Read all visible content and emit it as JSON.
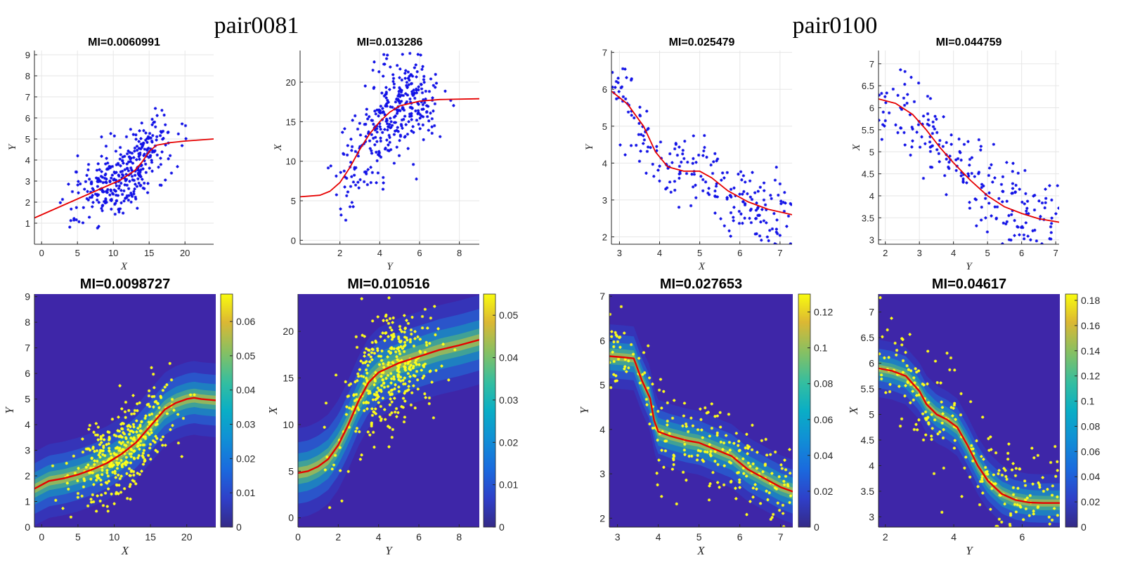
{
  "pairs": [
    {
      "label": "pair0081"
    },
    {
      "label": "pair0100"
    }
  ],
  "colors": {
    "scatter_top": "#1010e6",
    "scatter_bottom": "#ffff1a",
    "curve": "#e60000",
    "grid": "#e6e6e6",
    "axis": "#262626",
    "heat_bg": "#3e26a8"
  },
  "chart_data": [
    {
      "id": "p81-top-left",
      "type": "scatter",
      "title": "MI=0.0060991",
      "xlabel": "X",
      "ylabel": "Y",
      "xlim": [
        -1,
        24
      ],
      "ylim": [
        0,
        9.2
      ],
      "xticks": [
        0,
        5,
        10,
        15,
        20
      ],
      "yticks": [
        1,
        2,
        3,
        4,
        5,
        6,
        7,
        8,
        9
      ],
      "curve": {
        "x": [
          -1,
          2,
          5,
          8,
          11,
          13,
          14,
          15,
          16,
          18,
          20,
          22,
          24
        ],
        "y": [
          1.25,
          1.7,
          2.15,
          2.6,
          3.05,
          3.5,
          3.9,
          4.4,
          4.7,
          4.83,
          4.9,
          4.95,
          5.0
        ]
      },
      "points": {
        "seed": 811,
        "n": 360,
        "shape": "sig",
        "params": [
          -1,
          24,
          1.25,
          5.0,
          13.5,
          3.4,
          0.85
        ]
      }
    },
    {
      "id": "p81-top-right",
      "type": "scatter",
      "title": "MI=0.013286",
      "xlabel": "Y",
      "ylabel": "X",
      "xlim": [
        0,
        9
      ],
      "ylim": [
        -0.5,
        24
      ],
      "xticks": [
        2,
        4,
        6,
        8
      ],
      "yticks": [
        0,
        5,
        10,
        15,
        20
      ],
      "curve": {
        "x": [
          0,
          1,
          1.5,
          2,
          2.5,
          3,
          3.5,
          4,
          4.5,
          5,
          6,
          7,
          9
        ],
        "y": [
          5.5,
          5.7,
          6.2,
          7.3,
          9.2,
          11.5,
          13.5,
          15.0,
          16.2,
          17.0,
          17.6,
          17.8,
          17.9
        ]
      },
      "points": {
        "seed": 812,
        "n": 360,
        "shape": "sig",
        "params": [
          0,
          9,
          5.5,
          17.9,
          3.0,
          0.75,
          3.2
        ]
      }
    },
    {
      "id": "p100-top-left",
      "type": "scatter",
      "title": "MI=0.025479",
      "xlabel": "X",
      "ylabel": "Y",
      "xlim": [
        2.8,
        7.3
      ],
      "ylim": [
        1.8,
        7.05
      ],
      "xticks": [
        3,
        4,
        5,
        6,
        7
      ],
      "yticks": [
        2,
        3,
        4,
        5,
        6,
        7
      ],
      "curve": {
        "x": [
          2.8,
          3.2,
          3.6,
          3.9,
          4.2,
          4.6,
          5.0,
          5.3,
          5.7,
          6.2,
          6.7,
          7.3
        ],
        "y": [
          5.95,
          5.6,
          5.0,
          4.3,
          3.9,
          3.78,
          3.78,
          3.6,
          3.25,
          2.95,
          2.75,
          2.6
        ]
      },
      "points": {
        "seed": 1001,
        "n": 230,
        "shape": "lin",
        "params": [
          2.8,
          7.3,
          5.95,
          2.6,
          0.5
        ]
      }
    },
    {
      "id": "p100-top-right",
      "type": "scatter",
      "title": "MI=0.044759",
      "xlabel": "Y",
      "ylabel": "X",
      "xlim": [
        1.8,
        7.1
      ],
      "ylim": [
        2.9,
        7.3
      ],
      "xticks": [
        2,
        3,
        4,
        5,
        6,
        7
      ],
      "yticks": [
        3,
        3.5,
        4,
        4.5,
        5,
        5.5,
        6,
        6.5,
        7
      ],
      "curve": {
        "x": [
          1.8,
          2.3,
          2.8,
          3.2,
          3.6,
          4.0,
          4.5,
          5.0,
          5.5,
          6.0,
          6.5,
          7.1
        ],
        "y": [
          6.2,
          6.1,
          5.85,
          5.5,
          5.1,
          4.75,
          4.35,
          4.0,
          3.75,
          3.6,
          3.48,
          3.4
        ]
      },
      "points": {
        "seed": 1002,
        "n": 230,
        "shape": "lin",
        "params": [
          1.8,
          7.1,
          6.2,
          3.4,
          0.5
        ]
      }
    },
    {
      "id": "p81-bottom-left",
      "type": "heatmap",
      "title": "MI=0.0098727",
      "xlabel": "X",
      "ylabel": "Y",
      "xlim": [
        -1,
        24
      ],
      "ylim": [
        0,
        9.1
      ],
      "xticks": [
        0,
        5,
        10,
        15,
        20
      ],
      "yticks": [
        0,
        1,
        2,
        3,
        4,
        5,
        6,
        7,
        8,
        9
      ],
      "colorbar": {
        "ticks": [
          0,
          0.01,
          0.02,
          0.03,
          0.04,
          0.05,
          0.06
        ],
        "labels": [
          "0",
          "0.01",
          "0.02",
          "0.03",
          "0.04",
          "0.05",
          "0.06"
        ],
        "max": 0.068
      },
      "curve": {
        "x": [
          -1,
          1,
          3,
          5,
          7,
          9,
          11,
          13,
          15,
          17,
          18.5,
          20,
          21,
          22,
          24
        ],
        "y": [
          1.5,
          1.8,
          1.9,
          2.05,
          2.25,
          2.5,
          2.85,
          3.3,
          3.95,
          4.6,
          4.85,
          5.0,
          5.05,
          5.0,
          4.95
        ]
      },
      "band": {
        "width": 0.9
      },
      "points": {
        "seed": 813,
        "n": 360,
        "shape": "sig",
        "params": [
          -1,
          24,
          1.25,
          5.0,
          13.5,
          3.4,
          0.85
        ]
      }
    },
    {
      "id": "p81-bottom-right",
      "type": "heatmap",
      "title": "MI=0.010516",
      "xlabel": "Y",
      "ylabel": "X",
      "xlim": [
        0,
        9
      ],
      "ylim": [
        -1,
        24
      ],
      "xticks": [
        0,
        2,
        4,
        6,
        8
      ],
      "yticks": [
        0,
        5,
        10,
        15,
        20
      ],
      "colorbar": {
        "ticks": [
          0,
          0.01,
          0.02,
          0.03,
          0.04,
          0.05
        ],
        "labels": [
          "0",
          "0.01",
          "0.02",
          "0.03",
          "0.04",
          "0.05"
        ],
        "max": 0.055
      },
      "curve": {
        "x": [
          0,
          0.5,
          1,
          1.5,
          2,
          2.5,
          3,
          3.5,
          4,
          4.5,
          5,
          6,
          7,
          8,
          9
        ],
        "y": [
          4.8,
          5.0,
          5.5,
          6.3,
          7.8,
          10.0,
          12.5,
          14.5,
          15.6,
          16.1,
          16.6,
          17.3,
          18.0,
          18.5,
          19.1
        ]
      },
      "band": {
        "width": 3.0
      },
      "points": {
        "seed": 814,
        "n": 360,
        "shape": "sig",
        "params": [
          0,
          9,
          5.5,
          17.9,
          3.0,
          0.75,
          3.2
        ]
      }
    },
    {
      "id": "p100-bottom-left",
      "type": "heatmap",
      "title": "MI=0.027653",
      "xlabel": "X",
      "ylabel": "Y",
      "xlim": [
        2.8,
        7.3
      ],
      "ylim": [
        1.8,
        7.05
      ],
      "xticks": [
        3,
        4,
        5,
        6,
        7
      ],
      "yticks": [
        2,
        3,
        4,
        5,
        6,
        7
      ],
      "colorbar": {
        "ticks": [
          0,
          0.02,
          0.04,
          0.06,
          0.08,
          0.1,
          0.12
        ],
        "labels": [
          "0",
          "0.02",
          "0.04",
          "0.06",
          "0.08",
          "0.1",
          "0.12"
        ],
        "max": 0.13
      },
      "curve": {
        "x": [
          2.8,
          3.2,
          3.4,
          3.6,
          3.8,
          3.9,
          4.0,
          4.3,
          4.7,
          5.0,
          5.4,
          5.8,
          6.2,
          6.6,
          7.0,
          7.3
        ],
        "y": [
          5.65,
          5.62,
          5.6,
          5.1,
          4.7,
          4.2,
          3.95,
          3.85,
          3.75,
          3.7,
          3.55,
          3.4,
          3.1,
          2.9,
          2.7,
          2.6
        ]
      },
      "band": {
        "width": 0.45
      },
      "points": {
        "seed": 1003,
        "n": 230,
        "shape": "lin",
        "params": [
          2.8,
          7.3,
          5.95,
          2.6,
          0.5
        ]
      }
    },
    {
      "id": "p100-bottom-right",
      "type": "heatmap",
      "title": "MI=0.04617",
      "xlabel": "Y",
      "ylabel": "X",
      "xlim": [
        1.8,
        7.1
      ],
      "ylim": [
        2.8,
        7.35
      ],
      "xticks": [
        2,
        4,
        6
      ],
      "yticks": [
        3,
        3.5,
        4,
        4.5,
        5,
        5.5,
        6,
        6.5,
        7
      ],
      "colorbar": {
        "ticks": [
          0,
          0.02,
          0.04,
          0.06,
          0.08,
          0.1,
          0.12,
          0.14,
          0.16,
          0.18
        ],
        "labels": [
          "0",
          "0.02",
          "0.04",
          "0.06",
          "0.08",
          "0.1",
          "0.12",
          "0.14",
          "0.16",
          "0.18"
        ],
        "max": 0.185
      },
      "curve": {
        "x": [
          1.8,
          2.2,
          2.6,
          3.0,
          3.2,
          3.5,
          3.8,
          4.1,
          4.4,
          4.7,
          5.0,
          5.4,
          5.8,
          6.2,
          6.6,
          7.1
        ],
        "y": [
          5.9,
          5.85,
          5.75,
          5.45,
          5.2,
          5.0,
          4.9,
          4.75,
          4.4,
          4.0,
          3.7,
          3.45,
          3.33,
          3.28,
          3.27,
          3.27
        ]
      },
      "band": {
        "width": 0.35
      },
      "points": {
        "seed": 1004,
        "n": 230,
        "shape": "lin",
        "params": [
          1.8,
          7.1,
          6.2,
          3.4,
          0.5
        ]
      }
    }
  ]
}
